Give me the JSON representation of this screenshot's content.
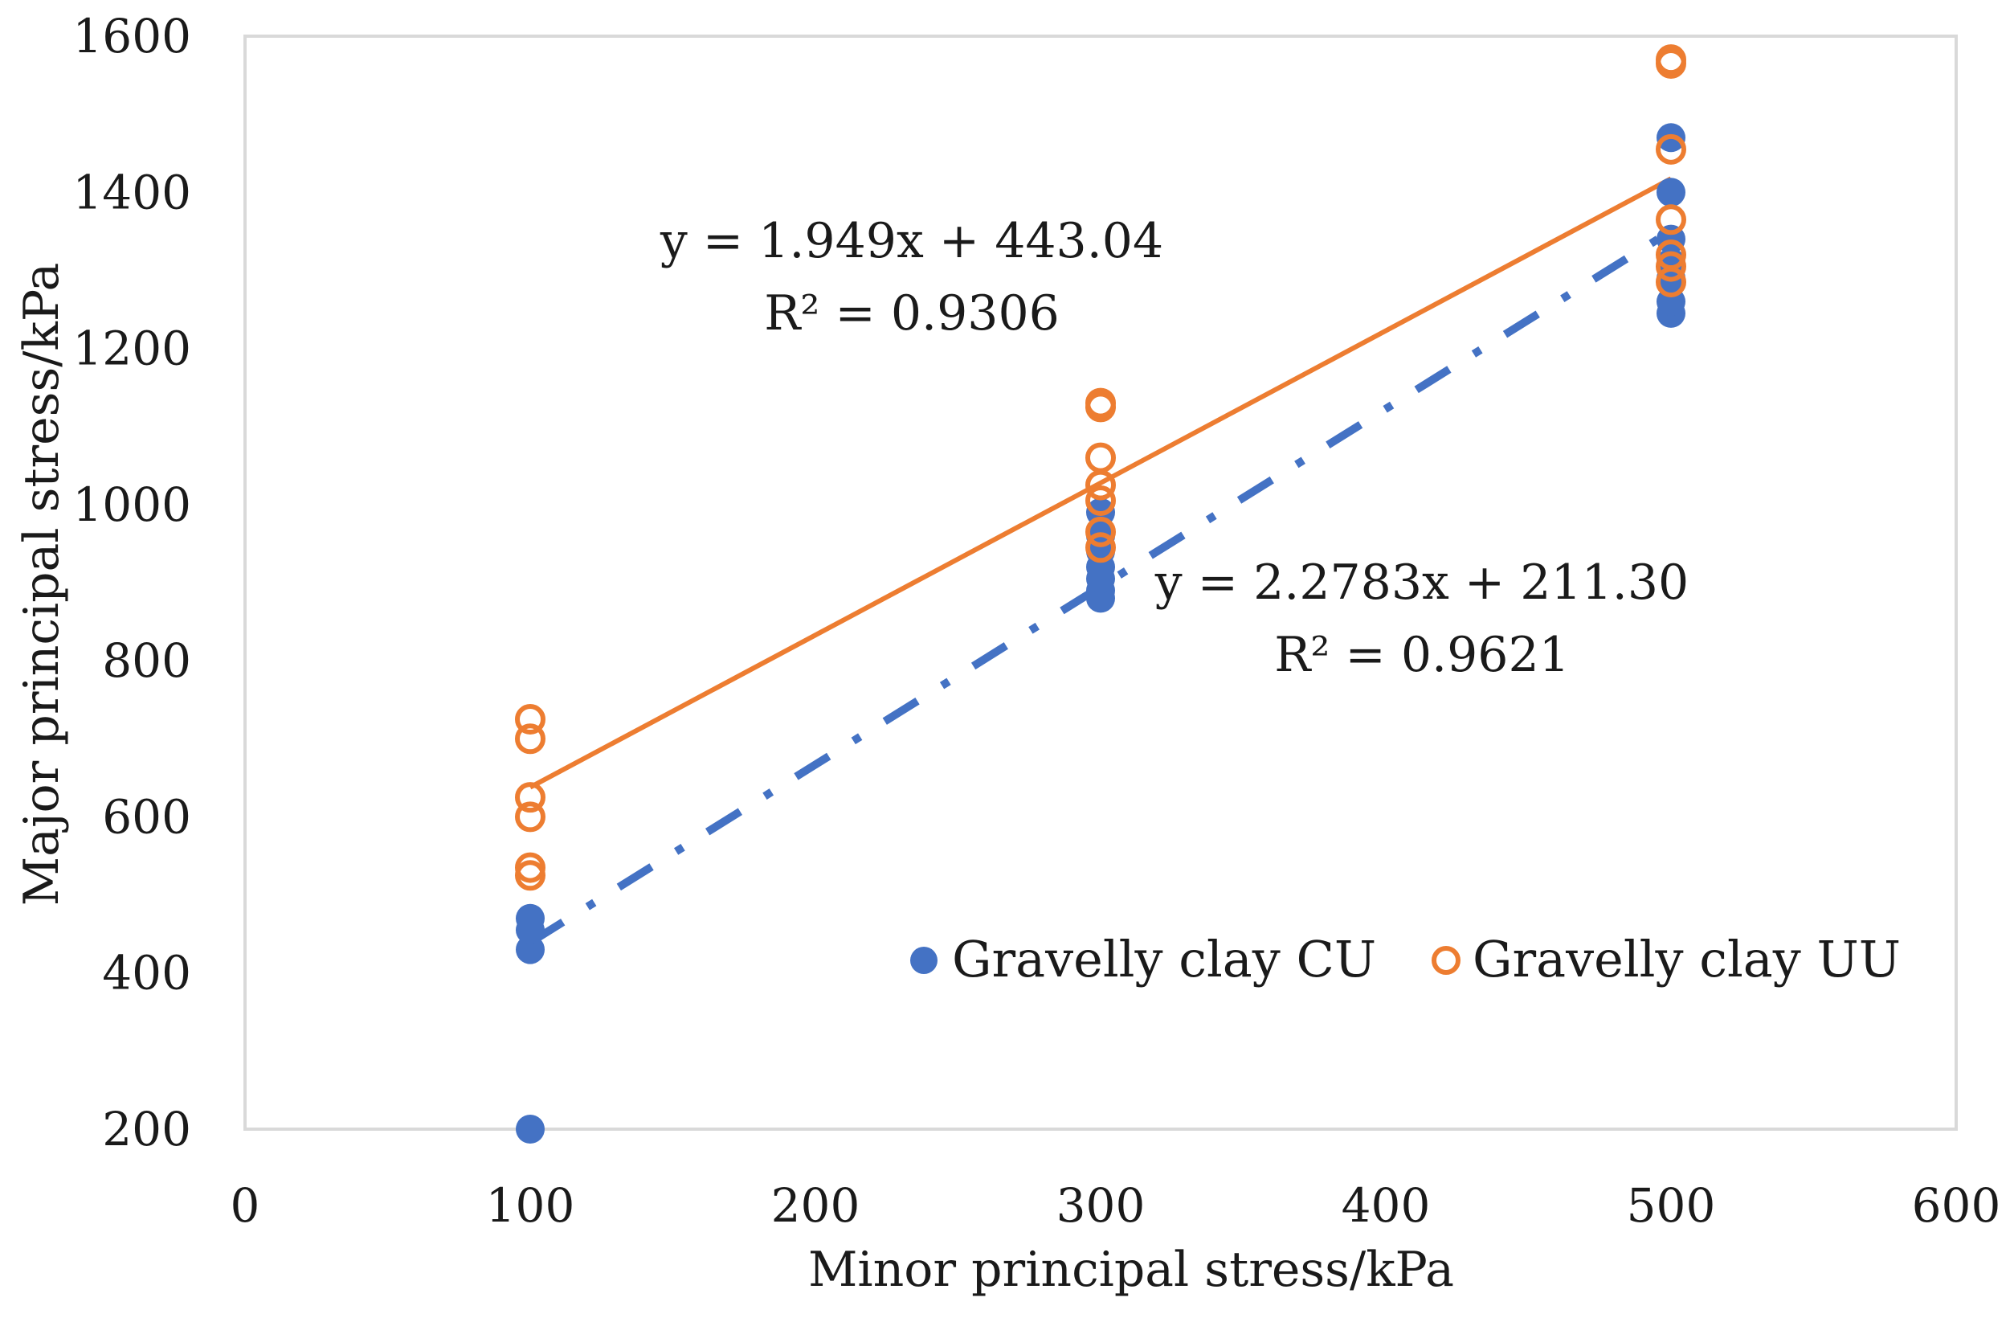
{
  "chart_data": {
    "type": "scatter",
    "title": "",
    "xlabel": "Minor principal stress/kPa",
    "ylabel": "Major principal stress/kPa",
    "xlim": [
      0,
      600
    ],
    "ylim": [
      200,
      1600
    ],
    "x_ticks": [
      0,
      100,
      200,
      300,
      400,
      500,
      600
    ],
    "y_ticks": [
      200,
      400,
      600,
      800,
      1000,
      1200,
      1400,
      1600
    ],
    "grid": false,
    "legend_position": "bottom-right",
    "series": [
      {
        "name": "Gravelly clay CU",
        "marker": "filled-circle",
        "color": "#4472C4",
        "points": [
          [
            100,
            200
          ],
          [
            100,
            430
          ],
          [
            100,
            455
          ],
          [
            100,
            470
          ],
          [
            300,
            880
          ],
          [
            300,
            890
          ],
          [
            300,
            905
          ],
          [
            300,
            920
          ],
          [
            300,
            940
          ],
          [
            300,
            960
          ],
          [
            300,
            990
          ],
          [
            500,
            1245
          ],
          [
            500,
            1260
          ],
          [
            500,
            1290
          ],
          [
            500,
            1310
          ],
          [
            500,
            1340
          ],
          [
            500,
            1400
          ],
          [
            500,
            1470
          ]
        ]
      },
      {
        "name": "Gravelly clay UU",
        "marker": "open-circle",
        "color": "#ED7D31",
        "points": [
          [
            100,
            525
          ],
          [
            100,
            535
          ],
          [
            100,
            600
          ],
          [
            100,
            625
          ],
          [
            100,
            700
          ],
          [
            100,
            725
          ],
          [
            300,
            945
          ],
          [
            300,
            965
          ],
          [
            300,
            1005
          ],
          [
            300,
            1025
          ],
          [
            300,
            1060
          ],
          [
            300,
            1125
          ],
          [
            300,
            1130
          ],
          [
            500,
            1285
          ],
          [
            500,
            1305
          ],
          [
            500,
            1320
          ],
          [
            500,
            1365
          ],
          [
            500,
            1455
          ],
          [
            500,
            1565
          ],
          [
            500,
            1570
          ]
        ]
      }
    ],
    "trendlines": [
      {
        "series": "Gravelly clay UU",
        "slope": 1.949,
        "intercept": 443.04,
        "x_range": [
          100,
          500
        ],
        "style": "solid",
        "color": "#ED7D31",
        "equation": "y = 1.949x + 443.04",
        "r_squared": "R² = 0.9306"
      },
      {
        "series": "Gravelly clay CU",
        "slope": 2.2783,
        "intercept": 211.3,
        "x_range": [
          100,
          500
        ],
        "style": "dash-dot",
        "color": "#4472C4",
        "equation": "y = 2.2783x + 211.30",
        "r_squared": "R² = 0.9621"
      }
    ]
  }
}
